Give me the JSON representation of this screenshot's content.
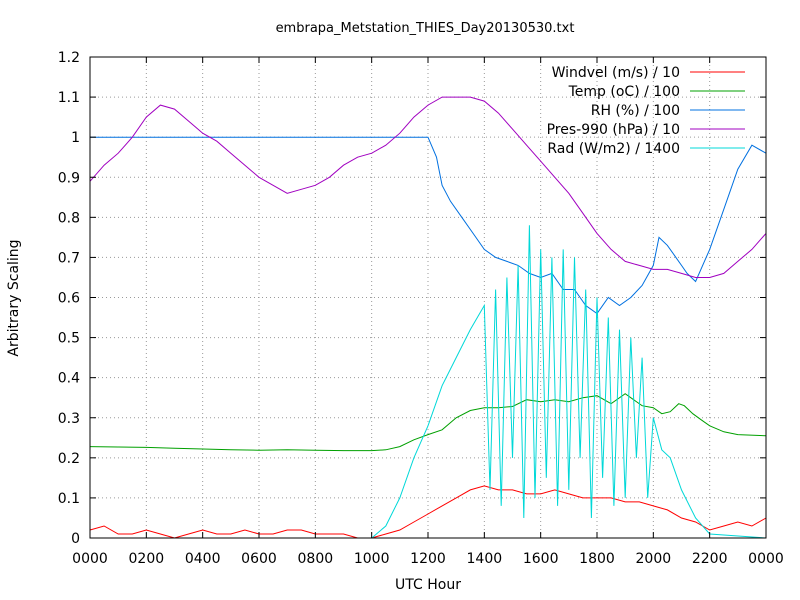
{
  "chart_data": {
    "type": "line",
    "title": "embrapa_Metstation_THIES_Day20130530.txt",
    "xlabel": "UTC Hour",
    "ylabel": "Arbitrary Scaling",
    "xlim": [
      0,
      24
    ],
    "ylim": [
      0,
      1.2
    ],
    "grid": true,
    "legend_position": "top-right",
    "x_ticks": [
      {
        "value": 0,
        "label": "0000"
      },
      {
        "value": 2,
        "label": "0200"
      },
      {
        "value": 4,
        "label": "0400"
      },
      {
        "value": 6,
        "label": "0600"
      },
      {
        "value": 8,
        "label": "0800"
      },
      {
        "value": 10,
        "label": "1000"
      },
      {
        "value": 12,
        "label": "1200"
      },
      {
        "value": 14,
        "label": "1400"
      },
      {
        "value": 16,
        "label": "1600"
      },
      {
        "value": 18,
        "label": "1800"
      },
      {
        "value": 20,
        "label": "2000"
      },
      {
        "value": 22,
        "label": "2200"
      },
      {
        "value": 24,
        "label": "0000"
      }
    ],
    "y_ticks": [
      {
        "value": 0,
        "label": "0"
      },
      {
        "value": 0.1,
        "label": "0.1"
      },
      {
        "value": 0.2,
        "label": "0.2"
      },
      {
        "value": 0.3,
        "label": "0.3"
      },
      {
        "value": 0.4,
        "label": "0.4"
      },
      {
        "value": 0.5,
        "label": "0.5"
      },
      {
        "value": 0.6,
        "label": "0.6"
      },
      {
        "value": 0.7,
        "label": "0.7"
      },
      {
        "value": 0.8,
        "label": "0.8"
      },
      {
        "value": 0.9,
        "label": "0.9"
      },
      {
        "value": 1.0,
        "label": "1"
      },
      {
        "value": 1.1,
        "label": "1.1"
      },
      {
        "value": 1.2,
        "label": "1.2"
      }
    ],
    "series": [
      {
        "name": "Windvel (m/s) / 10",
        "color": "#ff0000",
        "x": [
          0,
          0.5,
          1,
          1.5,
          2,
          2.5,
          3,
          3.5,
          4,
          4.5,
          5,
          5.5,
          6,
          6.5,
          7,
          7.5,
          8,
          8.5,
          9,
          9.5,
          10,
          10.5,
          11,
          11.5,
          12,
          12.5,
          13,
          13.5,
          14,
          14.5,
          15,
          15.5,
          16,
          16.5,
          17,
          17.5,
          18,
          18.5,
          19,
          19.5,
          20,
          20.5,
          21,
          21.5,
          22,
          22.5,
          23,
          23.5,
          24
        ],
        "y": [
          0.02,
          0.03,
          0.01,
          0.01,
          0.02,
          0.01,
          0.0,
          0.01,
          0.02,
          0.01,
          0.01,
          0.02,
          0.01,
          0.01,
          0.02,
          0.02,
          0.01,
          0.01,
          0.01,
          0.0,
          0.0,
          0.01,
          0.02,
          0.04,
          0.06,
          0.08,
          0.1,
          0.12,
          0.13,
          0.12,
          0.12,
          0.11,
          0.11,
          0.12,
          0.11,
          0.1,
          0.1,
          0.1,
          0.09,
          0.09,
          0.08,
          0.07,
          0.05,
          0.04,
          0.02,
          0.03,
          0.04,
          0.03,
          0.05
        ]
      },
      {
        "name": "Temp (oC) / 100",
        "color": "#00a000",
        "x": [
          0,
          1,
          2,
          3,
          4,
          5,
          6,
          7,
          8,
          9,
          10,
          10.5,
          11,
          11.5,
          12,
          12.5,
          13,
          13.5,
          14,
          14.5,
          15,
          15.5,
          16,
          16.5,
          17,
          17.5,
          18,
          18.5,
          19,
          19.3,
          19.6,
          20,
          20.3,
          20.6,
          20.9,
          21.1,
          21.4,
          21.7,
          22,
          22.5,
          23,
          24
        ],
        "y": [
          0.228,
          0.227,
          0.226,
          0.224,
          0.222,
          0.22,
          0.219,
          0.22,
          0.219,
          0.218,
          0.218,
          0.22,
          0.228,
          0.245,
          0.258,
          0.27,
          0.3,
          0.318,
          0.325,
          0.325,
          0.328,
          0.345,
          0.34,
          0.345,
          0.34,
          0.35,
          0.355,
          0.335,
          0.36,
          0.345,
          0.33,
          0.325,
          0.31,
          0.315,
          0.335,
          0.33,
          0.31,
          0.295,
          0.28,
          0.265,
          0.258,
          0.255
        ]
      },
      {
        "name": "RH (%) / 100",
        "color": "#0070e0",
        "x": [
          0,
          1,
          2,
          3,
          4,
          5,
          6,
          7,
          8,
          9,
          10,
          11,
          12,
          12.3,
          12.5,
          12.8,
          13.2,
          13.6,
          14,
          14.4,
          14.8,
          15.2,
          15.6,
          16,
          16.4,
          16.8,
          17.2,
          17.6,
          18,
          18.4,
          18.8,
          19.2,
          19.6,
          20,
          20.2,
          20.5,
          20.8,
          21,
          21.2,
          21.5,
          22,
          22.5,
          23,
          23.5,
          24
        ],
        "y": [
          1.0,
          1.0,
          1.0,
          1.0,
          1.0,
          1.0,
          1.0,
          1.0,
          1.0,
          1.0,
          1.0,
          1.0,
          1.0,
          0.95,
          0.88,
          0.84,
          0.8,
          0.76,
          0.72,
          0.7,
          0.69,
          0.68,
          0.66,
          0.65,
          0.66,
          0.62,
          0.62,
          0.58,
          0.56,
          0.6,
          0.58,
          0.6,
          0.63,
          0.68,
          0.75,
          0.73,
          0.7,
          0.68,
          0.66,
          0.64,
          0.72,
          0.82,
          0.92,
          0.98,
          0.96
        ]
      },
      {
        "name": "Pres-990 (hPa) / 10",
        "color": "#a000c0",
        "x": [
          0,
          0.5,
          1,
          1.5,
          2,
          2.5,
          3,
          3.5,
          4,
          4.5,
          5,
          5.5,
          6,
          6.5,
          7,
          7.5,
          8,
          8.5,
          9,
          9.5,
          10,
          10.5,
          11,
          11.5,
          12,
          12.5,
          13,
          13.5,
          14,
          14.5,
          15,
          15.5,
          16,
          16.5,
          17,
          17.5,
          18,
          18.5,
          19,
          19.5,
          20,
          20.5,
          21,
          21.5,
          22,
          22.5,
          23,
          23.5,
          24
        ],
        "y": [
          0.89,
          0.93,
          0.96,
          1.0,
          1.05,
          1.08,
          1.07,
          1.04,
          1.01,
          0.99,
          0.96,
          0.93,
          0.9,
          0.88,
          0.86,
          0.87,
          0.88,
          0.9,
          0.93,
          0.95,
          0.96,
          0.98,
          1.01,
          1.05,
          1.08,
          1.1,
          1.1,
          1.1,
          1.09,
          1.06,
          1.02,
          0.98,
          0.94,
          0.9,
          0.86,
          0.81,
          0.76,
          0.72,
          0.69,
          0.68,
          0.67,
          0.67,
          0.66,
          0.65,
          0.65,
          0.66,
          0.69,
          0.72,
          0.76
        ]
      },
      {
        "name": "Rad (W/m2) / 1400",
        "color": "#00d8d8",
        "x": [
          0,
          10,
          10.5,
          11,
          11.5,
          12,
          12.5,
          13,
          13.5,
          14,
          14.2,
          14.4,
          14.6,
          14.8,
          15,
          15.2,
          15.4,
          15.6,
          15.8,
          16,
          16.2,
          16.4,
          16.6,
          16.8,
          17,
          17.2,
          17.4,
          17.6,
          17.8,
          18,
          18.2,
          18.4,
          18.6,
          18.8,
          19,
          19.2,
          19.4,
          19.6,
          19.8,
          20,
          20.3,
          20.6,
          21,
          21.5,
          22,
          24
        ],
        "y": [
          0.0,
          0.0,
          0.03,
          0.1,
          0.2,
          0.28,
          0.38,
          0.45,
          0.52,
          0.58,
          0.12,
          0.62,
          0.08,
          0.65,
          0.2,
          0.68,
          0.05,
          0.78,
          0.1,
          0.72,
          0.15,
          0.7,
          0.08,
          0.72,
          0.12,
          0.7,
          0.2,
          0.62,
          0.05,
          0.6,
          0.15,
          0.55,
          0.08,
          0.52,
          0.1,
          0.5,
          0.2,
          0.45,
          0.1,
          0.3,
          0.22,
          0.2,
          0.12,
          0.05,
          0.01,
          0.0
        ]
      }
    ]
  }
}
